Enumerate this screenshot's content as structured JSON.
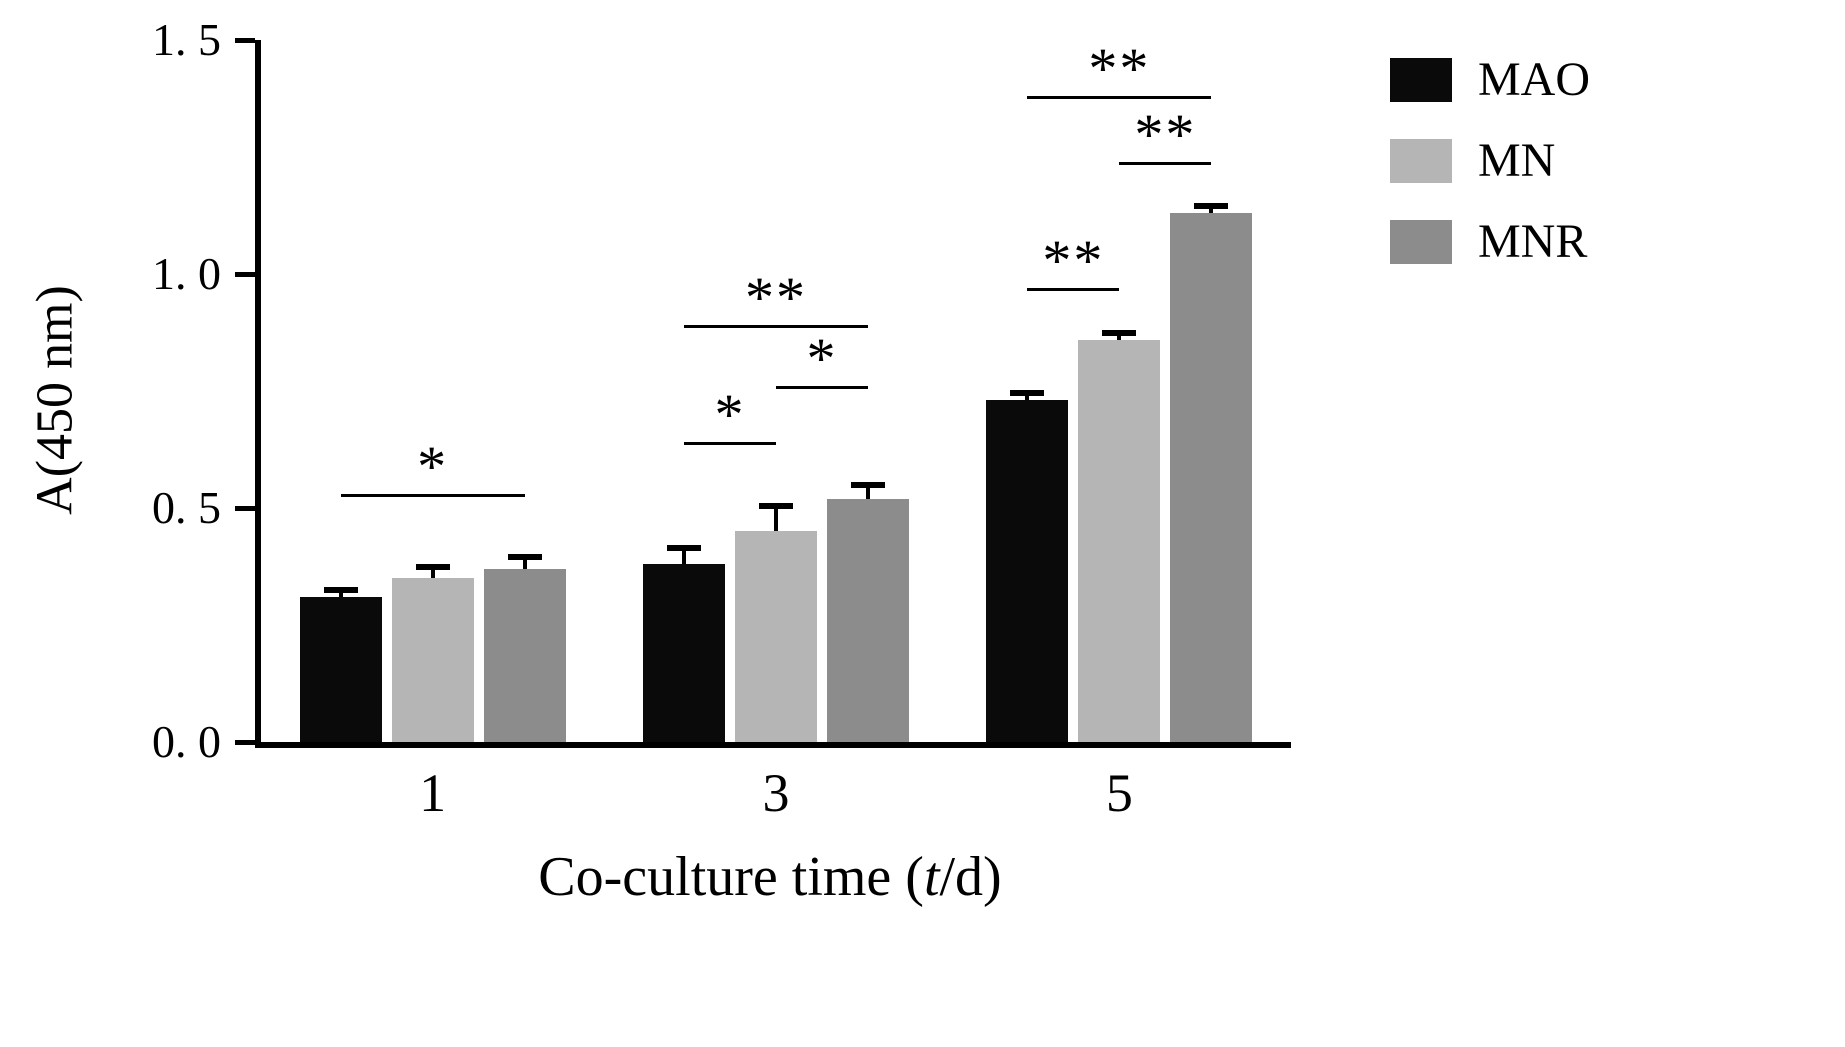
{
  "chart_data": {
    "type": "bar",
    "title": "",
    "xlabel": "Co-culture time (t/d)",
    "xlabel_parts": {
      "prefix": "Co-culture time (",
      "italic": "t",
      "suffix": "/d)"
    },
    "ylabel": "A(450 nm)",
    "categories": [
      "1",
      "3",
      "5"
    ],
    "series": [
      {
        "name": "MAO",
        "color": "#0a0a0a",
        "values": [
          0.31,
          0.38,
          0.73
        ],
        "errors": [
          0.01,
          0.03,
          0.012
        ]
      },
      {
        "name": "MN",
        "color": "#b5b5b5",
        "values": [
          0.35,
          0.45,
          0.86
        ],
        "errors": [
          0.02,
          0.05,
          0.01
        ]
      },
      {
        "name": "MNR",
        "color": "#8c8c8c",
        "values": [
          0.37,
          0.52,
          1.13
        ],
        "errors": [
          0.022,
          0.025,
          0.012
        ]
      }
    ],
    "ylim": [
      0,
      1.5
    ],
    "yticks": [
      {
        "value": 0.0,
        "label": "0. 0"
      },
      {
        "value": 0.5,
        "label": "0. 5"
      },
      {
        "value": 1.0,
        "label": "1. 0"
      },
      {
        "value": 1.5,
        "label": "1. 5"
      }
    ],
    "grid": false,
    "legend_position": "top-right",
    "annotations": [
      {
        "group": 0,
        "from": 0,
        "to": 2,
        "y": 0.53,
        "label": "*"
      },
      {
        "group": 1,
        "from": 0,
        "to": 1,
        "y": 0.64,
        "label": "*"
      },
      {
        "group": 1,
        "from": 1,
        "to": 2,
        "y": 0.76,
        "label": "*"
      },
      {
        "group": 1,
        "from": 0,
        "to": 2,
        "y": 0.89,
        "label": "**"
      },
      {
        "group": 2,
        "from": 0,
        "to": 1,
        "y": 0.97,
        "label": "**"
      },
      {
        "group": 2,
        "from": 1,
        "to": 2,
        "y": 1.24,
        "label": "**"
      },
      {
        "group": 2,
        "from": 0,
        "to": 2,
        "y": 1.38,
        "label": "**"
      }
    ]
  }
}
